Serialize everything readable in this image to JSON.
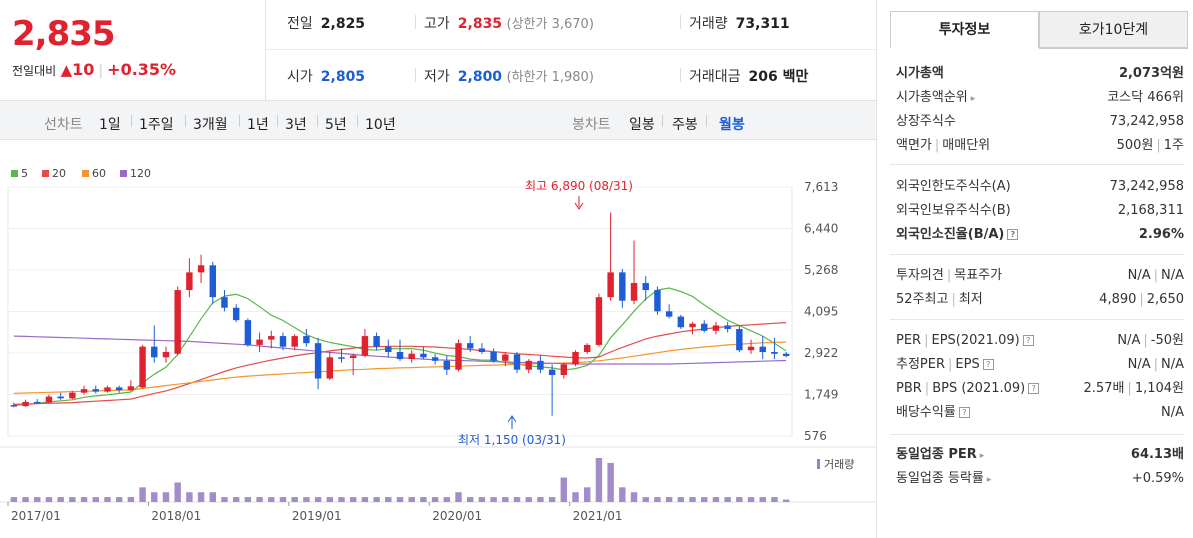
{
  "quote": {
    "price": "2,835",
    "change_label": "전일대비",
    "change_arrow": "▲",
    "change_value": "10",
    "change_pct": "+0.35%"
  },
  "stats": {
    "prev_label": "전일",
    "prev_value": "2,825",
    "high_label": "고가",
    "high_value": "2,835",
    "high_sub": "(상한가 3,670)",
    "volume_label": "거래량",
    "volume_value": "73,311",
    "open_label": "시가",
    "open_value": "2,805",
    "low_label": "저가",
    "low_value": "2,800",
    "low_sub": "(하한가 1,980)",
    "amount_label": "거래대금",
    "amount_value": "206 백만"
  },
  "periods": {
    "line_header": "선차트",
    "line_items": [
      "1일",
      "1주일",
      "3개월",
      "1년",
      "3년",
      "5년",
      "10년"
    ],
    "candle_header": "봉차트",
    "candle_items": [
      "일봉",
      "주봉",
      "월봉"
    ],
    "selected": "월봉"
  },
  "legend": [
    {
      "label": "5",
      "color": "#59b84a"
    },
    {
      "label": "20",
      "color": "#e64b4b"
    },
    {
      "label": "60",
      "color": "#f2972f"
    },
    {
      "label": "120",
      "color": "#9a6ac8"
    }
  ],
  "chart_data": {
    "type": "candlestick",
    "y_ticks": [
      "7,613",
      "6,440",
      "5,268",
      "4,095",
      "2,922",
      "1,749",
      "576"
    ],
    "ylim": [
      576,
      7613
    ],
    "x_ticks": [
      "2017/01",
      "2018/01",
      "2019/01",
      "2020/01",
      "2021/01"
    ],
    "annotations": {
      "high_label": "최고 6,890 (08/31)",
      "low_label": "최저 1,150 (03/31)"
    },
    "volume_label": "거래량",
    "candles": [
      {
        "o": 1450,
        "h": 1520,
        "l": 1390,
        "c": 1420,
        "v": 1
      },
      {
        "o": 1420,
        "h": 1600,
        "l": 1400,
        "c": 1540,
        "v": 1
      },
      {
        "o": 1540,
        "h": 1620,
        "l": 1480,
        "c": 1520,
        "v": 1
      },
      {
        "o": 1520,
        "h": 1750,
        "l": 1500,
        "c": 1690,
        "v": 1
      },
      {
        "o": 1690,
        "h": 1800,
        "l": 1600,
        "c": 1640,
        "v": 1
      },
      {
        "o": 1640,
        "h": 1850,
        "l": 1620,
        "c": 1800,
        "v": 1
      },
      {
        "o": 1800,
        "h": 2000,
        "l": 1750,
        "c": 1900,
        "v": 1
      },
      {
        "o": 1900,
        "h": 2000,
        "l": 1780,
        "c": 1830,
        "v": 1
      },
      {
        "o": 1830,
        "h": 2000,
        "l": 1800,
        "c": 1950,
        "v": 1
      },
      {
        "o": 1950,
        "h": 2000,
        "l": 1800,
        "c": 1870,
        "v": 1
      },
      {
        "o": 1870,
        "h": 2150,
        "l": 1850,
        "c": 1980,
        "v": 1
      },
      {
        "o": 1950,
        "h": 3150,
        "l": 1920,
        "c": 3100,
        "v": 3
      },
      {
        "o": 3100,
        "h": 3700,
        "l": 2650,
        "c": 2800,
        "v": 2
      },
      {
        "o": 2800,
        "h": 3100,
        "l": 2650,
        "c": 2950,
        "v": 2
      },
      {
        "o": 2900,
        "h": 4800,
        "l": 2850,
        "c": 4700,
        "v": 4
      },
      {
        "o": 4700,
        "h": 5600,
        "l": 4500,
        "c": 5200,
        "v": 2
      },
      {
        "o": 5200,
        "h": 5700,
        "l": 4900,
        "c": 5400,
        "v": 2
      },
      {
        "o": 5400,
        "h": 5500,
        "l": 4300,
        "c": 4500,
        "v": 2
      },
      {
        "o": 4500,
        "h": 4700,
        "l": 4100,
        "c": 4200,
        "v": 1
      },
      {
        "o": 4200,
        "h": 4300,
        "l": 3800,
        "c": 3850,
        "v": 1
      },
      {
        "o": 3850,
        "h": 3900,
        "l": 3100,
        "c": 3150,
        "v": 1
      },
      {
        "o": 3150,
        "h": 3500,
        "l": 2950,
        "c": 3300,
        "v": 1
      },
      {
        "o": 3300,
        "h": 3550,
        "l": 3050,
        "c": 3400,
        "v": 1
      },
      {
        "o": 3400,
        "h": 3500,
        "l": 3000,
        "c": 3100,
        "v": 1
      },
      {
        "o": 3100,
        "h": 3450,
        "l": 3000,
        "c": 3400,
        "v": 1
      },
      {
        "o": 3400,
        "h": 3600,
        "l": 3100,
        "c": 3200,
        "v": 1
      },
      {
        "o": 3200,
        "h": 3350,
        "l": 1900,
        "c": 2200,
        "v": 1
      },
      {
        "o": 2200,
        "h": 2950,
        "l": 2150,
        "c": 2800,
        "v": 1
      },
      {
        "o": 2800,
        "h": 3050,
        "l": 2650,
        "c": 2780,
        "v": 1
      },
      {
        "o": 2780,
        "h": 2900,
        "l": 2300,
        "c": 2850,
        "v": 1
      },
      {
        "o": 2850,
        "h": 3600,
        "l": 2800,
        "c": 3400,
        "v": 1
      },
      {
        "o": 3400,
        "h": 3500,
        "l": 3000,
        "c": 3100,
        "v": 1
      },
      {
        "o": 3100,
        "h": 3300,
        "l": 2800,
        "c": 2950,
        "v": 1
      },
      {
        "o": 2950,
        "h": 3300,
        "l": 2700,
        "c": 2750,
        "v": 1
      },
      {
        "o": 2750,
        "h": 3000,
        "l": 2650,
        "c": 2900,
        "v": 1
      },
      {
        "o": 2900,
        "h": 3100,
        "l": 2750,
        "c": 2800,
        "v": 1
      },
      {
        "o": 2800,
        "h": 2900,
        "l": 2600,
        "c": 2700,
        "v": 1
      },
      {
        "o": 2700,
        "h": 2850,
        "l": 2300,
        "c": 2450,
        "v": 1
      },
      {
        "o": 2450,
        "h": 3300,
        "l": 2400,
        "c": 3200,
        "v": 2
      },
      {
        "o": 3200,
        "h": 3400,
        "l": 2950,
        "c": 3050,
        "v": 1
      },
      {
        "o": 3050,
        "h": 3200,
        "l": 2900,
        "c": 2950,
        "v": 1
      },
      {
        "o": 2950,
        "h": 3050,
        "l": 2650,
        "c": 2700,
        "v": 1
      },
      {
        "o": 2700,
        "h": 2950,
        "l": 2550,
        "c": 2880,
        "v": 1
      },
      {
        "o": 2880,
        "h": 2950,
        "l": 2350,
        "c": 2450,
        "v": 1
      },
      {
        "o": 2450,
        "h": 2750,
        "l": 2350,
        "c": 2700,
        "v": 1
      },
      {
        "o": 2700,
        "h": 2850,
        "l": 2350,
        "c": 2450,
        "v": 1
      },
      {
        "o": 2450,
        "h": 2600,
        "l": 1150,
        "c": 2300,
        "v": 1
      },
      {
        "o": 2300,
        "h": 2650,
        "l": 2200,
        "c": 2600,
        "v": 5
      },
      {
        "o": 2600,
        "h": 3000,
        "l": 2550,
        "c": 2950,
        "v": 2
      },
      {
        "o": 2950,
        "h": 3200,
        "l": 2900,
        "c": 3150,
        "v": 3
      },
      {
        "o": 3150,
        "h": 4600,
        "l": 3100,
        "c": 4500,
        "v": 9
      },
      {
        "o": 4500,
        "h": 6890,
        "l": 4400,
        "c": 5200,
        "v": 8
      },
      {
        "o": 5200,
        "h": 5300,
        "l": 4200,
        "c": 4400,
        "v": 3
      },
      {
        "o": 4400,
        "h": 6100,
        "l": 4300,
        "c": 4900,
        "v": 2
      },
      {
        "o": 4900,
        "h": 5100,
        "l": 4400,
        "c": 4700,
        "v": 1
      },
      {
        "o": 4700,
        "h": 4800,
        "l": 4000,
        "c": 4100,
        "v": 1
      },
      {
        "o": 4100,
        "h": 4300,
        "l": 3900,
        "c": 3950,
        "v": 1
      },
      {
        "o": 3950,
        "h": 4000,
        "l": 3600,
        "c": 3650,
        "v": 1
      },
      {
        "o": 3650,
        "h": 3800,
        "l": 3450,
        "c": 3750,
        "v": 1
      },
      {
        "o": 3750,
        "h": 3850,
        "l": 3500,
        "c": 3550,
        "v": 1
      },
      {
        "o": 3550,
        "h": 3800,
        "l": 3450,
        "c": 3700,
        "v": 1
      },
      {
        "o": 3700,
        "h": 3800,
        "l": 3500,
        "c": 3600,
        "v": 1
      },
      {
        "o": 3600,
        "h": 3700,
        "l": 2950,
        "c": 3000,
        "v": 1
      },
      {
        "o": 3000,
        "h": 3300,
        "l": 2900,
        "c": 3100,
        "v": 1
      },
      {
        "o": 3100,
        "h": 3400,
        "l": 2750,
        "c": 2950,
        "v": 1
      },
      {
        "o": 2950,
        "h": 3350,
        "l": 2750,
        "c": 2900,
        "v": 1
      },
      {
        "o": 2900,
        "h": 2950,
        "l": 2800,
        "c": 2835,
        "v": 0.5
      }
    ],
    "ma5": [
      1440,
      1470,
      1500,
      1540,
      1570,
      1600,
      1670,
      1710,
      1740,
      1780,
      1820,
      2080,
      2320,
      2520,
      2880,
      3380,
      3890,
      4340,
      4530,
      4580,
      4460,
      4230,
      3990,
      3840,
      3640,
      3440,
      3310,
      3220,
      3160,
      3100,
      3020,
      3000,
      3050,
      3040,
      3050,
      3000,
      2920,
      2850,
      2820,
      2750,
      2720,
      2720,
      2650,
      2610,
      2560,
      2530,
      2500,
      2440,
      2480,
      2570,
      2850,
      3350,
      3720,
      4100,
      4450,
      4700,
      4760,
      4660,
      4520,
      4280,
      4060,
      3850,
      3700,
      3550,
      3400,
      3200,
      2980
    ],
    "ma20": [
      1470,
      1480,
      1490,
      1500,
      1510,
      1520,
      1540,
      1560,
      1580,
      1600,
      1620,
      1700,
      1780,
      1850,
      1950,
      2060,
      2170,
      2290,
      2400,
      2500,
      2580,
      2650,
      2720,
      2780,
      2840,
      2890,
      2930,
      2980,
      3020,
      3060,
      3090,
      3100,
      3110,
      3110,
      3110,
      3100,
      3090,
      3070,
      3050,
      3020,
      2990,
      2960,
      2930,
      2900,
      2880,
      2860,
      2830,
      2810,
      2790,
      2780,
      2810,
      2950,
      3080,
      3200,
      3320,
      3400,
      3460,
      3520,
      3560,
      3600,
      3640,
      3670,
      3700,
      3720,
      3740,
      3760,
      3780
    ],
    "ma60": [
      1780,
      1790,
      1800,
      1810,
      1820,
      1830,
      1840,
      1850,
      1860,
      1870,
      1880,
      1920,
      1960,
      2000,
      2040,
      2080,
      2120,
      2160,
      2200,
      2240,
      2270,
      2290,
      2310,
      2330,
      2350,
      2370,
      2390,
      2410,
      2430,
      2450,
      2460,
      2480,
      2490,
      2500,
      2510,
      2520,
      2530,
      2540,
      2550,
      2560,
      2570,
      2580,
      2590,
      2600,
      2610,
      2620,
      2630,
      2640,
      2650,
      2670,
      2700,
      2740,
      2780,
      2830,
      2880,
      2930,
      2980,
      3020,
      3060,
      3090,
      3120,
      3150,
      3170,
      3190,
      3210,
      3220,
      3230
    ],
    "ma120": [
      3400,
      3390,
      3380,
      3370,
      3360,
      3350,
      3340,
      3330,
      3320,
      3310,
      3300,
      3290,
      3280,
      3270,
      3260,
      3250,
      3230,
      3210,
      3190,
      3170,
      3150,
      3120,
      3090,
      3060,
      3030,
      3000,
      2970,
      2940,
      2910,
      2880,
      2850,
      2830,
      2810,
      2790,
      2770,
      2750,
      2730,
      2720,
      2710,
      2700,
      2690,
      2680,
      2670,
      2660,
      2650,
      2640,
      2630,
      2620,
      2610,
      2610,
      2610,
      2610,
      2610,
      2610,
      2610,
      2610,
      2610,
      2620,
      2630,
      2640,
      2650,
      2660,
      2670,
      2680,
      2690,
      2700,
      2710
    ]
  },
  "tabs": [
    "투자정보",
    "호가10단계"
  ],
  "info": {
    "market_cap": {
      "label": "시가총액",
      "value": "2,073억원"
    },
    "cap_rank": {
      "label": "시가총액순위",
      "value": "코스닥 466위"
    },
    "shares": {
      "label": "상장주식수",
      "value": "73,242,958"
    },
    "face": {
      "label1": "액면가",
      "label2": "매매단위",
      "value1": "500원",
      "value2": "1주"
    },
    "foreign_limit": {
      "label": "외국인한도주식수(A)",
      "value": "73,242,958"
    },
    "foreign_hold": {
      "label": "외국인보유주식수(B)",
      "value": "2,168,311"
    },
    "foreign_ratio": {
      "label": "외국인소진율(B/A)",
      "value": "2.96%"
    },
    "opinion": {
      "label1": "투자의견",
      "label2": "목표주가",
      "value1": "N/A",
      "value2": "N/A"
    },
    "week52": {
      "label1": "52주최고",
      "label2": "최저",
      "value1": "4,890",
      "value2": "2,650"
    },
    "per_eps": {
      "label1": "PER",
      "label2": "EPS(2021.09)",
      "value1": "N/A",
      "value2": "-50원"
    },
    "est_per": {
      "label1": "추정PER",
      "label2": "EPS",
      "value1": "N/A",
      "value2": "N/A"
    },
    "pbr_bps": {
      "label1": "PBR",
      "label2": "BPS (2021.09)",
      "value1": "2.57배",
      "value2": "1,104원"
    },
    "dividend": {
      "label": "배당수익률",
      "value": "N/A"
    },
    "sector_per": {
      "label": "동일업종 PER",
      "value": "64.13배"
    },
    "sector_chg": {
      "label": "동일업종 등락률",
      "value": "+0.59%"
    }
  }
}
